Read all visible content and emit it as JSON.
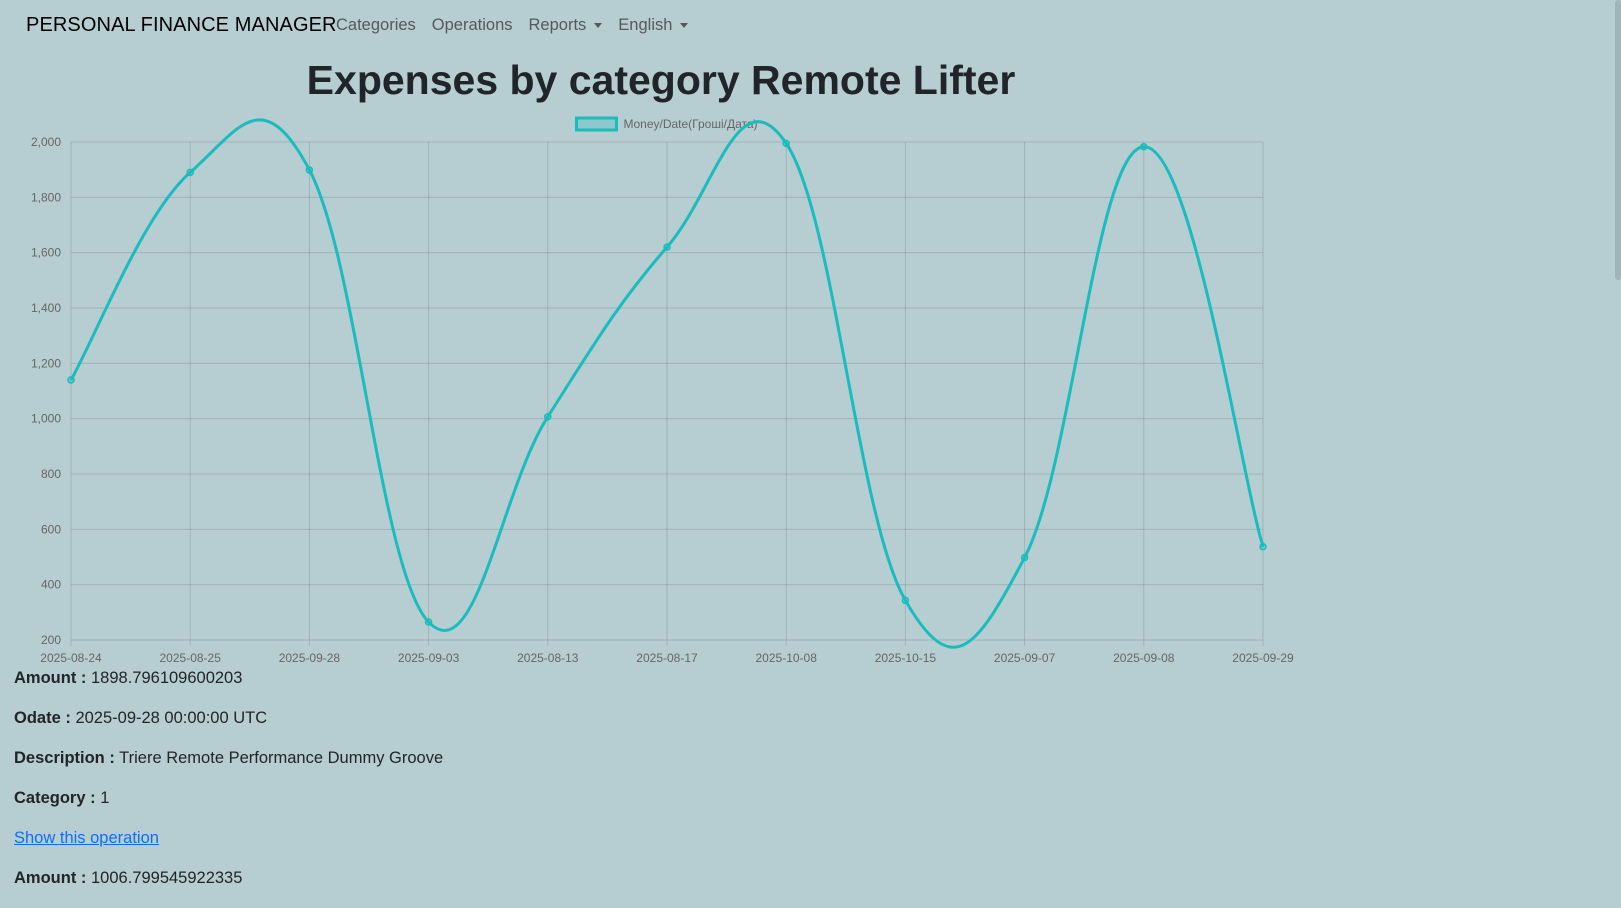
{
  "navbar": {
    "brand": "PERSONAL FINANCE MANAGER",
    "items": [
      {
        "label": "Categories",
        "dropdown": false
      },
      {
        "label": "Operations",
        "dropdown": false
      },
      {
        "label": "Reports",
        "dropdown": true
      },
      {
        "label": "English",
        "dropdown": true
      }
    ]
  },
  "page": {
    "title": "Expenses by category Remote Lifter"
  },
  "chart_data": {
    "type": "line",
    "categories": [
      "2025-08-24",
      "2025-08-25",
      "2025-09-28",
      "2025-09-03",
      "2025-08-13",
      "2025-08-17",
      "2025-10-08",
      "2025-10-15",
      "2025-09-07",
      "2025-09-08",
      "2025-09-29"
    ],
    "series": [
      {
        "name": "Money/Date(Гроші/Дата)",
        "values": [
          1140,
          1890,
          1899,
          265,
          1007,
          1620,
          1995,
          343,
          498,
          1983,
          537
        ],
        "color": "#1abcbc"
      }
    ],
    "ylim": [
      200,
      2000
    ],
    "yticks": [
      "2,000",
      "1,800",
      "1,600",
      "1,400",
      "1,200",
      "1,000",
      "800",
      "600",
      "400",
      "200"
    ],
    "grid": true,
    "legend": "top"
  },
  "operations": [
    {
      "amount_label": "Amount :",
      "amount": "1898.796109600203",
      "odate_label": "Odate :",
      "odate": "2025-09-28 00:00:00 UTC",
      "description_label": "Description :",
      "description": "Triere Remote Performance Dummy Groove",
      "category_label": "Category :",
      "category": "1",
      "show_link": "Show this operation"
    },
    {
      "amount_label": "Amount :",
      "amount": "1006.799545922335"
    }
  ]
}
